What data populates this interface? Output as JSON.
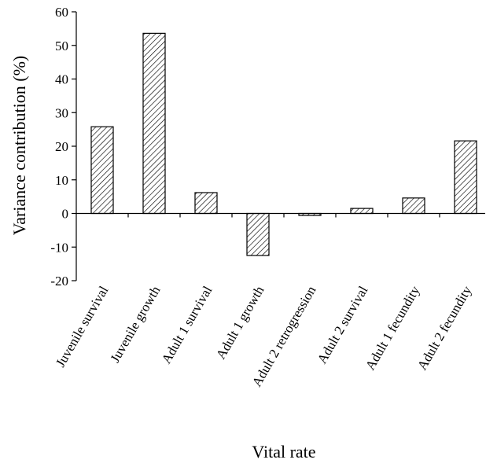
{
  "chart_data": {
    "type": "bar",
    "title": "",
    "xlabel": "Vital rate",
    "ylabel": "Variance contribution (%)",
    "ylim": [
      -20,
      60
    ],
    "yticks": [
      -20,
      -10,
      0,
      10,
      20,
      30,
      40,
      50,
      60
    ],
    "grid": false,
    "legend": "none",
    "bar_fill": "diagonal-hatch",
    "categories": [
      "Juvenile survival",
      "Juvenile growth",
      "Adult 1 survival",
      "Adult 1 growth",
      "Adult 2 retrogression",
      "Adult 2 survival",
      "Adult 1 fecundity",
      "Adult 2 fecundity"
    ],
    "values": [
      25.8,
      53.6,
      6.2,
      -12.5,
      -0.6,
      1.5,
      4.6,
      21.6
    ]
  }
}
